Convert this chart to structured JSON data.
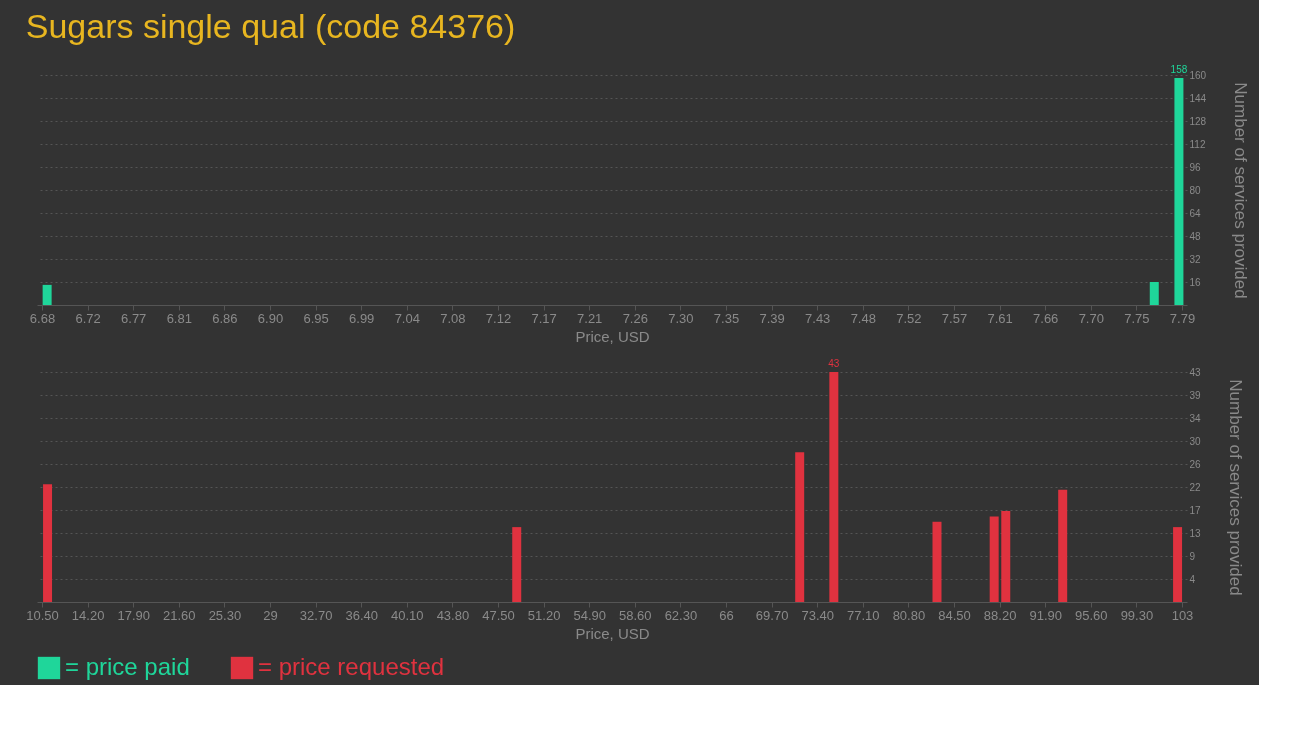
{
  "chart_data": [
    {
      "type": "bar",
      "title": "Sugars single qual (code 84376)",
      "xlabel": "Price, USD",
      "ylabel": "Number of services provided",
      "x": [
        6.685,
        7.763,
        7.787
      ],
      "series": [
        {
          "name": "= price paid",
          "color": "#1fd69a",
          "values": [
            14,
            16,
            158
          ],
          "value_labels": [
            null,
            null,
            "158"
          ]
        }
      ],
      "xlim": [
        6.68,
        7.79
      ],
      "xticks": [
        6.68,
        {
          "value": 6.7244,
          "label": "6.72"
        },
        {
          "value": 6.7688,
          "label": "6.77"
        },
        {
          "value": 6.8132,
          "label": "6.81"
        },
        {
          "value": 6.8576,
          "label": "6.86"
        },
        {
          "value": 6.902,
          "label": "6.90"
        },
        {
          "value": 6.9464,
          "label": "6.95"
        },
        {
          "value": 6.9908,
          "label": "6.99"
        },
        {
          "value": 7.0352,
          "label": "7.04"
        },
        {
          "value": 7.0796,
          "label": "7.08"
        },
        {
          "value": 7.124,
          "label": "7.12"
        },
        {
          "value": 7.1684,
          "label": "7.17"
        },
        {
          "value": 7.2128,
          "label": "7.21"
        },
        {
          "value": 7.2572,
          "label": "7.26"
        },
        {
          "value": 7.3016,
          "label": "7.30"
        },
        {
          "value": 7.346,
          "label": "7.35"
        },
        {
          "value": 7.3904,
          "label": "7.39"
        },
        {
          "value": 7.4348,
          "label": "7.43"
        },
        {
          "value": 7.4792,
          "label": "7.48"
        },
        {
          "value": 7.5236,
          "label": "7.52"
        },
        {
          "value": 7.568,
          "label": "7.57"
        },
        {
          "value": 7.6124,
          "label": "7.61"
        },
        {
          "value": 7.6568,
          "label": "7.66"
        },
        {
          "value": 7.7012,
          "label": "7.70"
        },
        {
          "value": 7.7456,
          "label": "7.75"
        },
        7.79
      ],
      "ylim": [
        0,
        160
      ],
      "yticks": [
        16,
        32,
        48,
        64,
        80,
        96,
        112,
        128,
        144,
        160
      ],
      "grid": "y",
      "legend": "bottom left"
    },
    {
      "type": "bar",
      "xlabel": "Price, USD",
      "ylabel": "Number of services provided",
      "x": [
        10.95,
        49.02,
        71.98,
        74.75,
        83.12,
        87.76,
        88.7,
        93.32,
        102.64
      ],
      "series": [
        {
          "name": "= price requested",
          "color": "#e0323f",
          "values": [
            22,
            14,
            28,
            43,
            15,
            16,
            17,
            21,
            14
          ],
          "value_labels": [
            null,
            null,
            null,
            "43",
            null,
            null,
            null,
            null,
            null
          ]
        }
      ],
      "xlim": [
        10.5,
        103
      ],
      "xticks": [
        {
          "value": 10.5,
          "label": "10.50"
        },
        {
          "value": 14.2,
          "label": "14.20"
        },
        {
          "value": 17.9,
          "label": "17.90"
        },
        {
          "value": 21.6,
          "label": "21.60"
        },
        {
          "value": 25.3,
          "label": "25.30"
        },
        29,
        {
          "value": 32.7,
          "label": "32.70"
        },
        {
          "value": 36.4,
          "label": "36.40"
        },
        {
          "value": 40.1,
          "label": "40.10"
        },
        {
          "value": 43.8,
          "label": "43.80"
        },
        {
          "value": 47.5,
          "label": "47.50"
        },
        {
          "value": 51.2,
          "label": "51.20"
        },
        {
          "value": 54.9,
          "label": "54.90"
        },
        {
          "value": 58.6,
          "label": "58.60"
        },
        {
          "value": 62.3,
          "label": "62.30"
        },
        66,
        {
          "value": 69.7,
          "label": "69.70"
        },
        {
          "value": 73.4,
          "label": "73.40"
        },
        {
          "value": 77.1,
          "label": "77.10"
        },
        {
          "value": 80.8,
          "label": "80.80"
        },
        {
          "value": 84.5,
          "label": "84.50"
        },
        {
          "value": 88.2,
          "label": "88.20"
        },
        {
          "value": 91.9,
          "label": "91.90"
        },
        {
          "value": 95.6,
          "label": "95.60"
        },
        {
          "value": 99.3,
          "label": "99.30"
        },
        103
      ],
      "ylim": [
        0,
        43
      ],
      "yticks": [
        {
          "value": 4.3,
          "label": "4"
        },
        {
          "value": 8.6,
          "label": "9"
        },
        {
          "value": 12.9,
          "label": "13"
        },
        {
          "value": 17.2,
          "label": "17"
        },
        {
          "value": 21.5,
          "label": "22"
        },
        {
          "value": 25.8,
          "label": "26"
        },
        {
          "value": 30.1,
          "label": "30"
        },
        {
          "value": 34.4,
          "label": "34"
        },
        {
          "value": 38.7,
          "label": "39"
        },
        43
      ],
      "grid": "y",
      "legend": "bottom left"
    }
  ]
}
